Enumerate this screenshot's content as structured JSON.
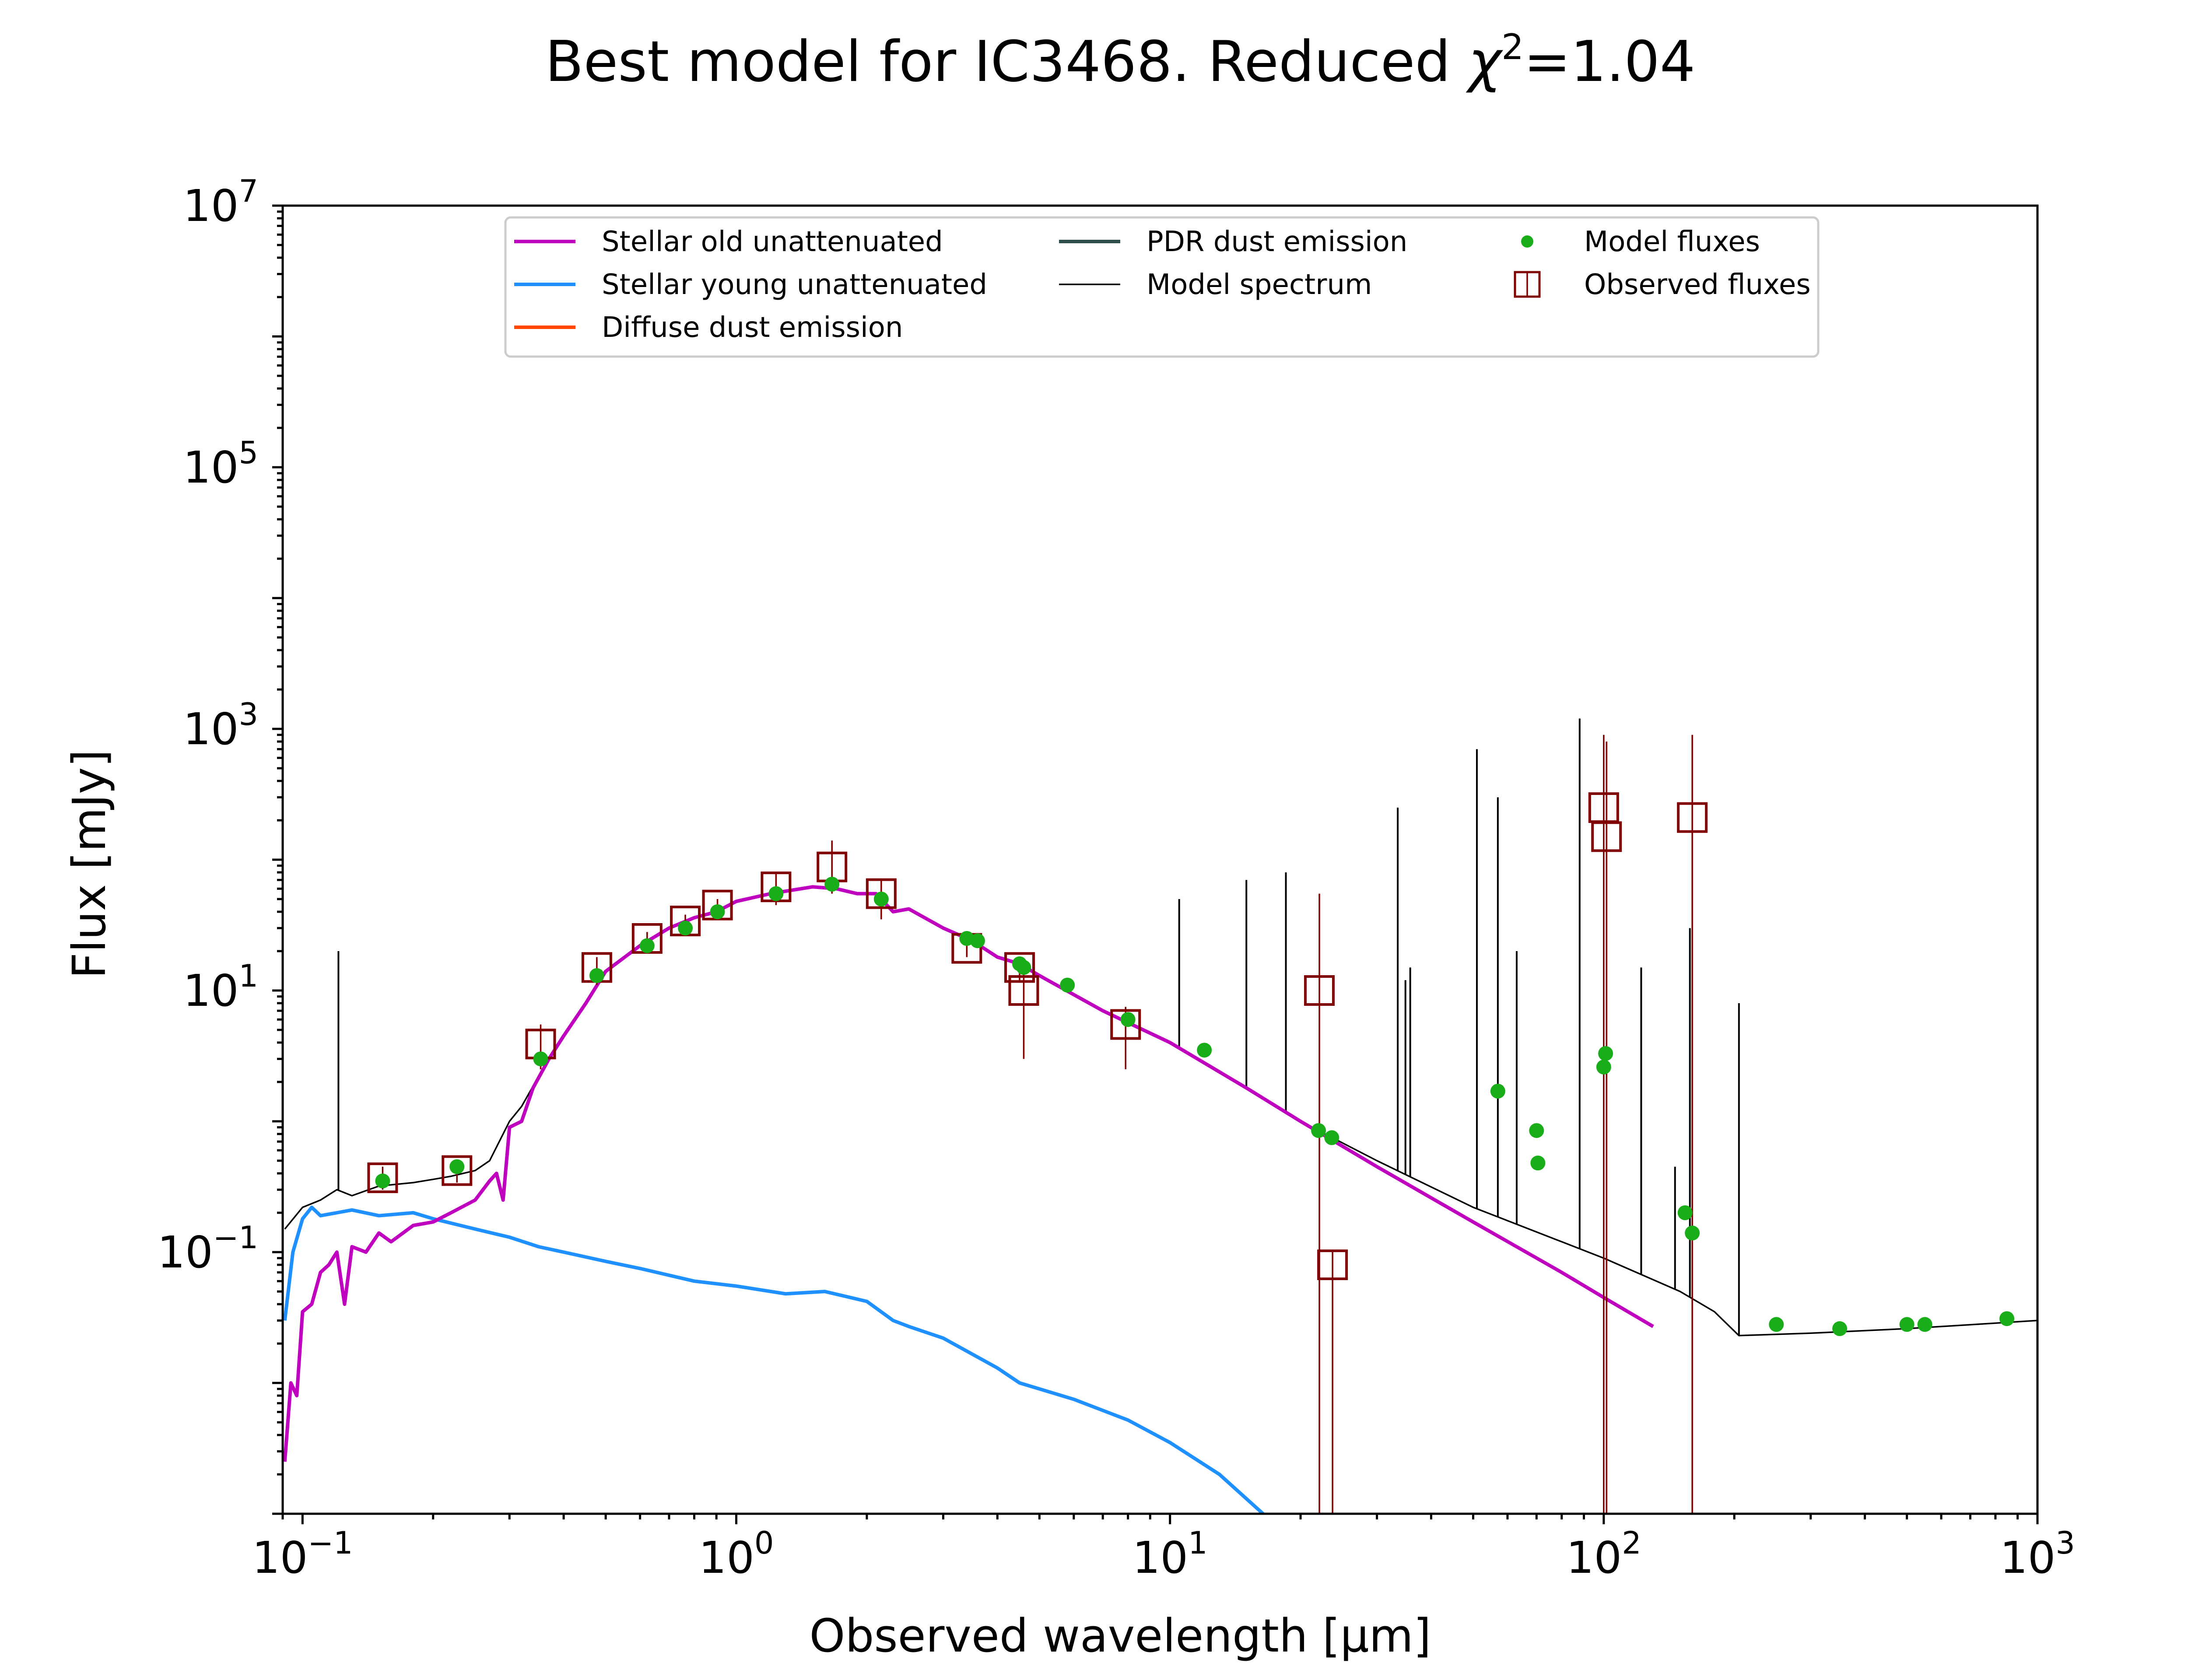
{
  "chart_data": {
    "type": "line",
    "title_prefix": "Best model for IC3468. Reduced ",
    "title_symbol": "χ",
    "title_sup": "2",
    "title_suffix": "=1.04",
    "xlabel": "Observed wavelength [μm]",
    "ylabel": "Flux [mJy]",
    "xscale": "log",
    "yscale": "log",
    "xlim": [
      0.09,
      1000
    ],
    "ylim": [
      0.001,
      10000000
    ],
    "x_ticks": [
      {
        "base": "10",
        "exp": "−1",
        "value": 0.1
      },
      {
        "base": "10",
        "exp": "0",
        "value": 1
      },
      {
        "base": "10",
        "exp": "1",
        "value": 10
      },
      {
        "base": "10",
        "exp": "2",
        "value": 100
      },
      {
        "base": "10",
        "exp": "3",
        "value": 1000
      }
    ],
    "y_ticks": [
      {
        "base": "10",
        "exp": "−1",
        "value": 0.1
      },
      {
        "base": "10",
        "exp": "1",
        "value": 10
      },
      {
        "base": "10",
        "exp": "3",
        "value": 1000
      },
      {
        "base": "10",
        "exp": "5",
        "value": 100000
      },
      {
        "base": "10",
        "exp": "7",
        "value": 10000000
      }
    ],
    "grid": false,
    "legend_position": "top-center",
    "legend": [
      {
        "label": "Stellar old unattenuated",
        "kind": "line",
        "color": "#bf00bf"
      },
      {
        "label": "Stellar young unattenuated",
        "kind": "line",
        "color": "#1e90ff"
      },
      {
        "label": "Diffuse dust emission",
        "kind": "line",
        "color": "#ff4500"
      },
      {
        "label": "PDR dust emission",
        "kind": "line",
        "color": "#2f4f4f"
      },
      {
        "label": "Model spectrum",
        "kind": "thinline",
        "color": "#000000"
      },
      {
        "label": "Model fluxes",
        "kind": "dot",
        "color": "#1aad1a"
      },
      {
        "label": "Observed fluxes",
        "kind": "square",
        "color": "#800000"
      }
    ],
    "series": [
      {
        "name": "Stellar old unattenuated",
        "color": "#bf00bf",
        "points": [
          [
            0.091,
            0.0025
          ],
          [
            0.094,
            0.01
          ],
          [
            0.097,
            0.008
          ],
          [
            0.1,
            0.035
          ],
          [
            0.105,
            0.04
          ],
          [
            0.11,
            0.07
          ],
          [
            0.115,
            0.08
          ],
          [
            0.12,
            0.1
          ],
          [
            0.125,
            0.04
          ],
          [
            0.13,
            0.11
          ],
          [
            0.14,
            0.1
          ],
          [
            0.15,
            0.14
          ],
          [
            0.16,
            0.12
          ],
          [
            0.18,
            0.16
          ],
          [
            0.2,
            0.17
          ],
          [
            0.22,
            0.2
          ],
          [
            0.25,
            0.25
          ],
          [
            0.27,
            0.35
          ],
          [
            0.28,
            0.4
          ],
          [
            0.29,
            0.25
          ],
          [
            0.3,
            0.9
          ],
          [
            0.32,
            1.0
          ],
          [
            0.34,
            1.8
          ],
          [
            0.37,
            3.0
          ],
          [
            0.4,
            4.5
          ],
          [
            0.45,
            8.0
          ],
          [
            0.5,
            14
          ],
          [
            0.6,
            22
          ],
          [
            0.7,
            30
          ],
          [
            0.8,
            36
          ],
          [
            0.9,
            40
          ],
          [
            1.0,
            48
          ],
          [
            1.2,
            55
          ],
          [
            1.5,
            62
          ],
          [
            1.7,
            60
          ],
          [
            1.9,
            55
          ],
          [
            2.1,
            55
          ],
          [
            2.3,
            40
          ],
          [
            2.5,
            42
          ],
          [
            3.0,
            30
          ],
          [
            3.5,
            24
          ],
          [
            4.0,
            18
          ],
          [
            4.5,
            16
          ],
          [
            5.0,
            13
          ],
          [
            7.0,
            7
          ],
          [
            10,
            4
          ],
          [
            15,
            1.8
          ],
          [
            20,
            1.0
          ],
          [
            30,
            0.45
          ],
          [
            50,
            0.17
          ],
          [
            80,
            0.07
          ],
          [
            100,
            0.045
          ],
          [
            130,
            0.027
          ]
        ]
      },
      {
        "name": "Stellar young unattenuated",
        "color": "#1e90ff",
        "points": [
          [
            0.091,
            0.03
          ],
          [
            0.095,
            0.1
          ],
          [
            0.1,
            0.18
          ],
          [
            0.105,
            0.22
          ],
          [
            0.11,
            0.19
          ],
          [
            0.12,
            0.2
          ],
          [
            0.13,
            0.21
          ],
          [
            0.15,
            0.19
          ],
          [
            0.18,
            0.2
          ],
          [
            0.2,
            0.18
          ],
          [
            0.25,
            0.15
          ],
          [
            0.3,
            0.13
          ],
          [
            0.35,
            0.11
          ],
          [
            0.4,
            0.1
          ],
          [
            0.5,
            0.085
          ],
          [
            0.6,
            0.075
          ],
          [
            0.8,
            0.06
          ],
          [
            1.0,
            0.055
          ],
          [
            1.3,
            0.048
          ],
          [
            1.6,
            0.05
          ],
          [
            2.0,
            0.042
          ],
          [
            2.3,
            0.03
          ],
          [
            2.5,
            0.027
          ],
          [
            3.0,
            0.022
          ],
          [
            4.0,
            0.013
          ],
          [
            4.5,
            0.01
          ],
          [
            6.0,
            0.0075
          ],
          [
            8.0,
            0.0052
          ],
          [
            10,
            0.0035
          ],
          [
            13,
            0.002
          ],
          [
            16.5,
            0.00098
          ]
        ]
      },
      {
        "name": "Model spectrum",
        "color": "#000000",
        "points": [
          [
            0.091,
            0.15
          ],
          [
            0.1,
            0.22
          ],
          [
            0.11,
            0.25
          ],
          [
            0.12,
            0.3
          ],
          [
            0.13,
            0.27
          ],
          [
            0.15,
            0.32
          ],
          [
            0.18,
            0.34
          ],
          [
            0.2,
            0.36
          ],
          [
            0.22,
            0.38
          ],
          [
            0.25,
            0.42
          ],
          [
            0.27,
            0.5
          ],
          [
            0.3,
            1.0
          ],
          [
            0.32,
            1.3
          ],
          [
            0.35,
            2.2
          ],
          [
            0.4,
            4.6
          ],
          [
            0.45,
            8.0
          ],
          [
            0.5,
            14
          ],
          [
            0.6,
            22
          ],
          [
            0.7,
            30
          ],
          [
            0.8,
            36
          ],
          [
            0.9,
            40
          ],
          [
            1.0,
            48
          ],
          [
            1.2,
            55
          ],
          [
            1.5,
            62
          ],
          [
            1.7,
            60
          ],
          [
            1.9,
            55
          ],
          [
            2.1,
            55
          ],
          [
            2.3,
            40
          ],
          [
            2.5,
            42
          ],
          [
            3.0,
            30
          ],
          [
            3.5,
            24
          ],
          [
            4.0,
            18
          ],
          [
            4.5,
            16
          ],
          [
            5.0,
            13
          ],
          [
            7.0,
            7
          ],
          [
            10,
            4
          ],
          [
            15,
            1.8
          ],
          [
            20,
            1.0
          ],
          [
            30,
            0.5
          ],
          [
            50,
            0.22
          ],
          [
            80,
            0.12
          ],
          [
            100,
            0.09
          ],
          [
            150,
            0.05
          ],
          [
            180,
            0.035
          ],
          [
            205,
            0.023
          ],
          [
            300,
            0.024
          ],
          [
            500,
            0.026
          ],
          [
            1000,
            0.03
          ]
        ]
      }
    ],
    "spectrum_spikes": [
      [
        0.121,
        20
      ],
      [
        10.5,
        50
      ],
      [
        15,
        70
      ],
      [
        18.5,
        80
      ],
      [
        33.5,
        250
      ],
      [
        34.9,
        12
      ],
      [
        35.8,
        15
      ],
      [
        51,
        700
      ],
      [
        57,
        300
      ],
      [
        63,
        20
      ],
      [
        88,
        1200
      ],
      [
        122,
        15
      ],
      [
        146,
        0.45
      ],
      [
        158,
        30
      ],
      [
        205,
        8
      ]
    ],
    "model_fluxes": [
      [
        0.153,
        0.35
      ],
      [
        0.227,
        0.45
      ],
      [
        0.354,
        3.0
      ],
      [
        0.477,
        13
      ],
      [
        0.623,
        22
      ],
      [
        0.763,
        30
      ],
      [
        0.905,
        40
      ],
      [
        1.235,
        55
      ],
      [
        1.662,
        65
      ],
      [
        2.159,
        50
      ],
      [
        3.4,
        25
      ],
      [
        3.6,
        24
      ],
      [
        4.5,
        16
      ],
      [
        4.6,
        15
      ],
      [
        5.8,
        11
      ],
      [
        8.0,
        6.0
      ],
      [
        12,
        3.5
      ],
      [
        22,
        0.85
      ],
      [
        23.6,
        0.75
      ],
      [
        57,
        1.7
      ],
      [
        70,
        0.85
      ],
      [
        70.5,
        0.48
      ],
      [
        100,
        2.6
      ],
      [
        101,
        3.3
      ],
      [
        154,
        0.2
      ],
      [
        160,
        0.14
      ],
      [
        250,
        0.028
      ],
      [
        350,
        0.026
      ],
      [
        500,
        0.028
      ],
      [
        550,
        0.028
      ],
      [
        850,
        0.031
      ]
    ],
    "observed_fluxes": [
      {
        "x": 0.153,
        "y": 0.37,
        "ylo": 0.3,
        "yhi": 0.45
      },
      {
        "x": 0.227,
        "y": 0.42,
        "ylo": 0.34,
        "yhi": 0.5
      },
      {
        "x": 0.354,
        "y": 3.9,
        "ylo": 2.5,
        "yhi": 5.5
      },
      {
        "x": 0.477,
        "y": 15,
        "ylo": 11,
        "yhi": 18
      },
      {
        "x": 0.623,
        "y": 25,
        "ylo": 22,
        "yhi": 28
      },
      {
        "x": 0.763,
        "y": 34,
        "ylo": 30,
        "yhi": 38
      },
      {
        "x": 0.905,
        "y": 45,
        "ylo": 38,
        "yhi": 50
      },
      {
        "x": 1.235,
        "y": 62,
        "ylo": 45,
        "yhi": 80
      },
      {
        "x": 1.662,
        "y": 88,
        "ylo": 55,
        "yhi": 140
      },
      {
        "x": 2.159,
        "y": 55,
        "ylo": 35,
        "yhi": 70
      },
      {
        "x": 3.4,
        "y": 21,
        "ylo": 18,
        "yhi": 24
      },
      {
        "x": 4.5,
        "y": 15,
        "ylo": 12,
        "yhi": 18
      },
      {
        "x": 4.6,
        "y": 10,
        "ylo": 3,
        "yhi": 15
      },
      {
        "x": 7.9,
        "y": 5.5,
        "ylo": 2.5,
        "yhi": 7.5
      },
      {
        "x": 22.1,
        "y": 10,
        "ylo": 0.001,
        "yhi": 55
      },
      {
        "x": 23.7,
        "y": 0.08,
        "ylo": 0.001,
        "yhi": 0.1
      },
      {
        "x": 100,
        "y": 250,
        "ylo": 0.001,
        "yhi": 900
      },
      {
        "x": 101.5,
        "y": 150,
        "ylo": 0.001,
        "yhi": 800
      },
      {
        "x": 160,
        "y": 210,
        "ylo": 0.001,
        "yhi": 900
      }
    ]
  }
}
